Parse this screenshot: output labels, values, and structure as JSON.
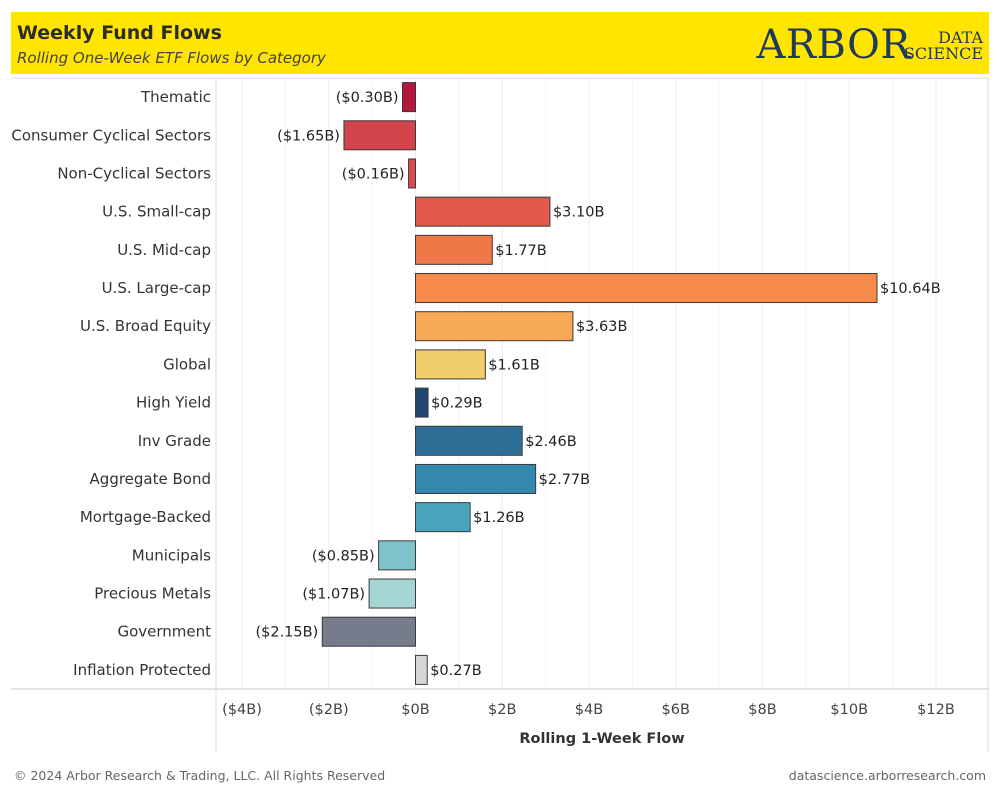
{
  "header": {
    "title": "Weekly Fund Flows",
    "subtitle": "Rolling One-Week ETF Flows by Category"
  },
  "logo": {
    "main": "ARBOR",
    "sub1": "DATA",
    "sub2": "SCIENCE"
  },
  "footer": {
    "copyright": "© 2024 Arbor Research & Trading, LLC. All Rights Reserved",
    "url": "datascience.arborresearch.com"
  },
  "chart_data": {
    "type": "bar",
    "orientation": "horizontal",
    "categories": [
      "Thematic",
      "Consumer Cyclical Sectors",
      "Non-Cyclical Sectors",
      "U.S. Small-cap",
      "U.S. Mid-cap",
      "U.S. Large-cap",
      "U.S. Broad Equity",
      "Global",
      "High Yield",
      "Inv Grade",
      "Aggregate Bond",
      "Mortgage-Backed",
      "Municipals",
      "Precious Metals",
      "Government",
      "Inflation Protected"
    ],
    "values": [
      -0.3,
      -1.65,
      -0.16,
      3.1,
      1.77,
      10.64,
      3.63,
      1.61,
      0.29,
      2.46,
      2.77,
      1.26,
      -0.85,
      -1.07,
      -2.15,
      0.27
    ],
    "value_labels": [
      "($0.30B)",
      "($1.65B)",
      "($0.16B)",
      "$3.10B",
      "$1.77B",
      "$10.64B",
      "$3.63B",
      "$1.61B",
      "$0.29B",
      "$2.46B",
      "$2.77B",
      "$1.26B",
      "($0.85B)",
      "($1.07B)",
      "($2.15B)",
      "$0.27B"
    ],
    "colors": [
      "#b5163c",
      "#d2434b",
      "#d94a4c",
      "#e3594b",
      "#ee7848",
      "#f58a4b",
      "#f8a955",
      "#f2cd6c",
      "#24476f",
      "#2f6f97",
      "#3488ae",
      "#4aa3bd",
      "#80c2cc",
      "#a6d6d3",
      "#767c8c",
      "#d6d6d6"
    ],
    "xlabel": "Rolling 1-Week Flow",
    "ylabel": "",
    "xlim": [
      -4.6,
      13.2
    ],
    "xticks": [
      -4,
      -2,
      0,
      2,
      4,
      6,
      8,
      10,
      12
    ],
    "xtick_labels": [
      "($4B)",
      "($2B)",
      "$0B",
      "$2B",
      "$4B",
      "$6B",
      "$8B",
      "$10B",
      "$12B"
    ],
    "grid": "vertical"
  }
}
